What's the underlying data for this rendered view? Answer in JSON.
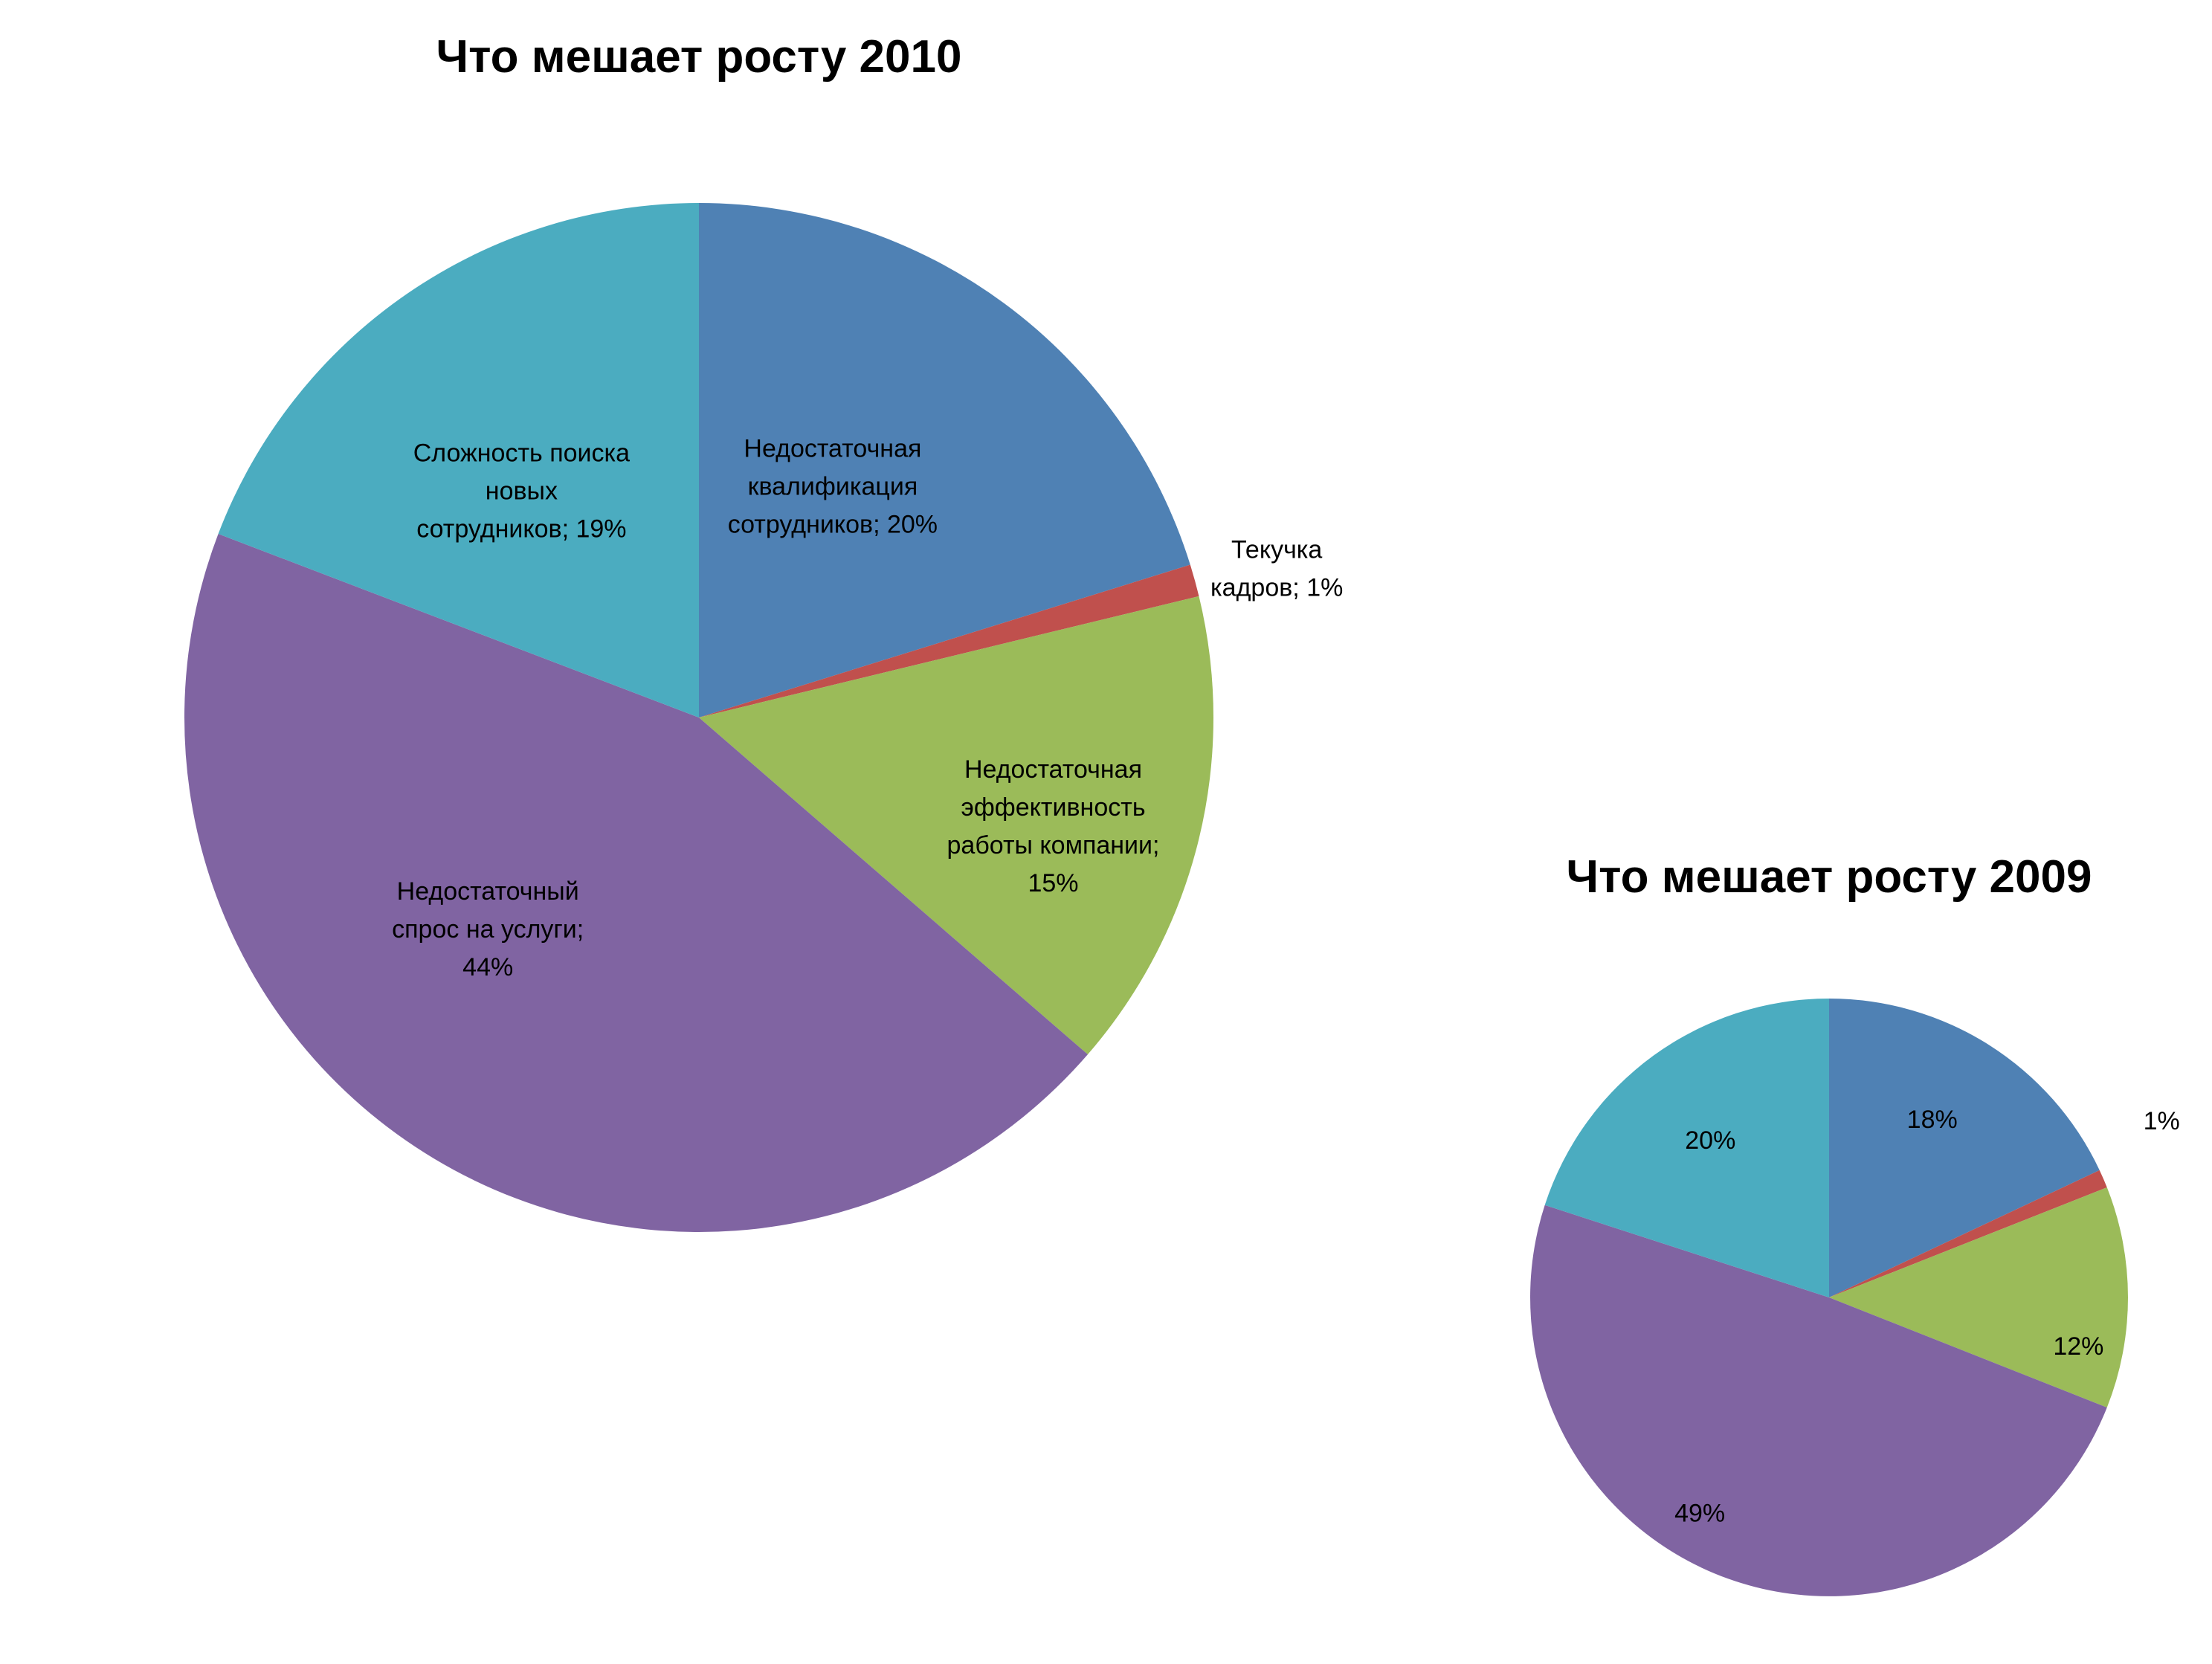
{
  "colors": {
    "blue": "#4F81B4",
    "red": "#C0504D",
    "green": "#9BBB59",
    "purple": "#8064A2",
    "teal": "#4BACC0"
  },
  "chart_data": [
    {
      "type": "pie",
      "title": "Что мешает росту 2010",
      "start": "12 o'clock",
      "direction": "clockwise",
      "slices": [
        {
          "value": 20,
          "color": "blue",
          "label_lines": [
            "Недостаточная",
            "квалификация",
            "сотрудников; 20%"
          ]
        },
        {
          "value": 1,
          "color": "red",
          "label_lines": [
            "Текучка",
            "кадров; 1%"
          ]
        },
        {
          "value": 15,
          "color": "green",
          "label_lines": [
            "Недостаточная",
            "эффективность",
            "работы компании;",
            "15%"
          ]
        },
        {
          "value": 44,
          "color": "purple",
          "label_lines": [
            "Недостаточный",
            "спрос на услуги;",
            "44%"
          ]
        },
        {
          "value": 19,
          "color": "teal",
          "label_lines": [
            "Сложность поиска",
            "новых",
            "сотрудников; 19%"
          ]
        }
      ]
    },
    {
      "type": "pie",
      "title": "Что мешает росту 2009",
      "start": "12 o'clock",
      "direction": "clockwise",
      "slices": [
        {
          "value": 18,
          "color": "blue",
          "label_lines": [
            "18%"
          ]
        },
        {
          "value": 1,
          "color": "red",
          "label_lines": [
            "1%"
          ]
        },
        {
          "value": 12,
          "color": "green",
          "label_lines": [
            "12%"
          ]
        },
        {
          "value": 49,
          "color": "purple",
          "label_lines": [
            "49%"
          ]
        },
        {
          "value": 20,
          "color": "teal",
          "label_lines": [
            "20%"
          ]
        }
      ]
    }
  ]
}
